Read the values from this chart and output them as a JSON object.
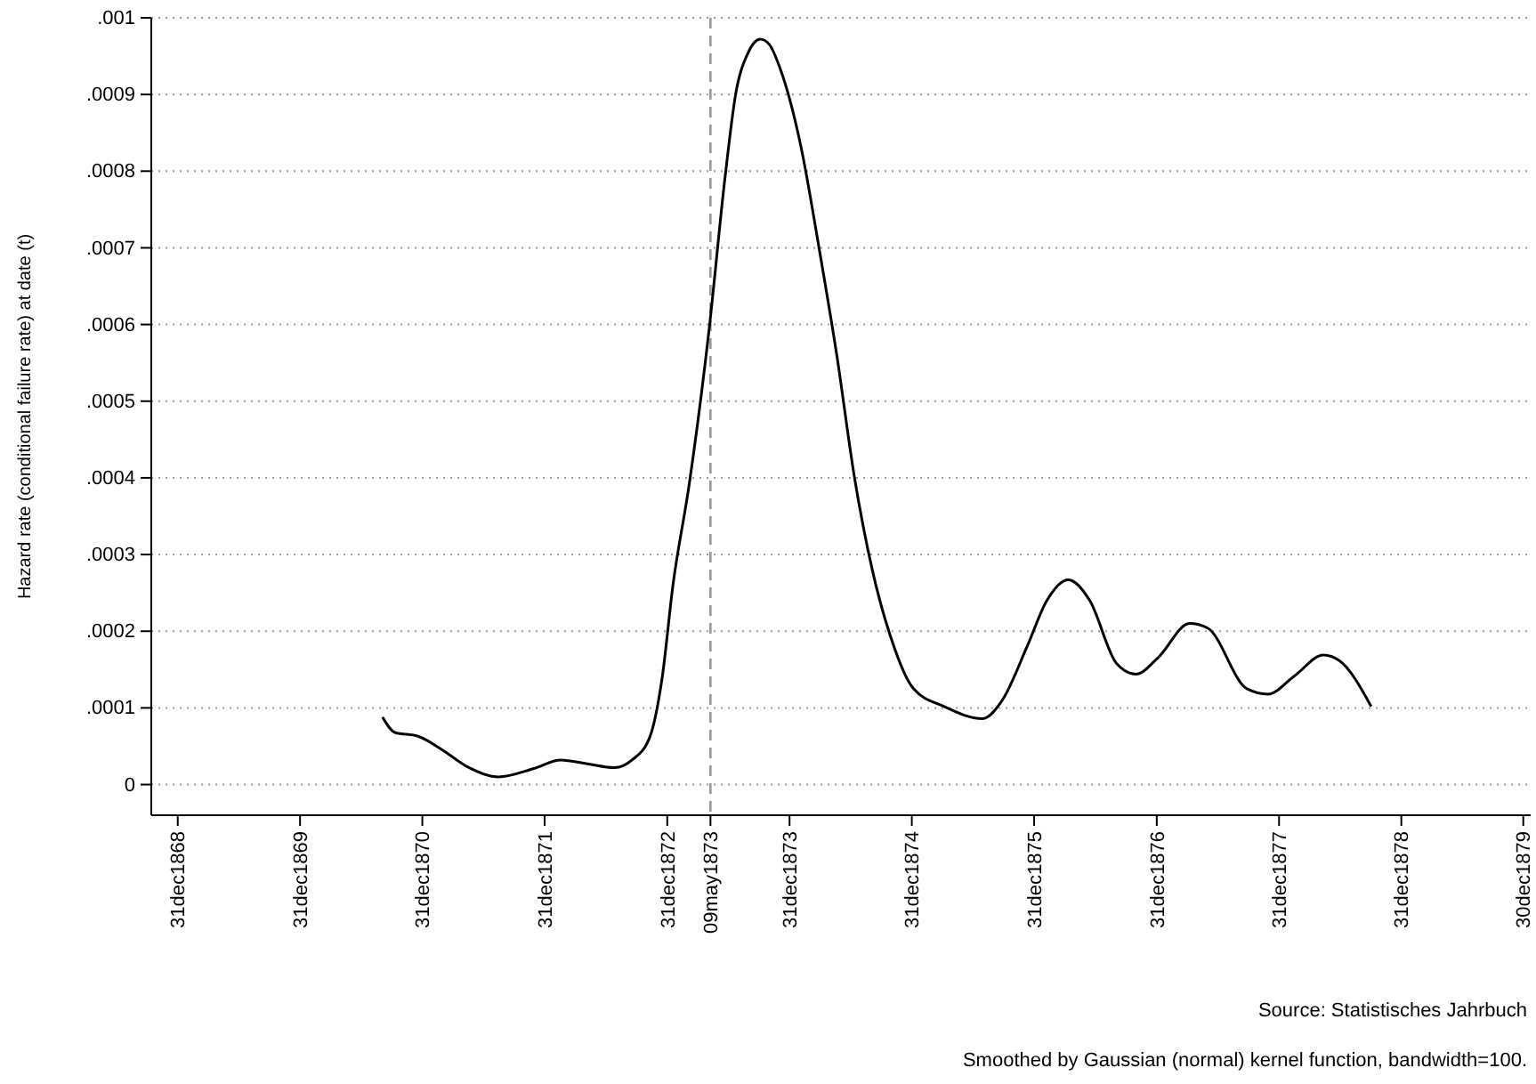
{
  "chart_data": {
    "type": "line",
    "ylabel": "Hazard rate (conditional failure rate) at date (t)",
    "annotations": [
      "Source: Statistisches Jahrbuch",
      "Smoothed by Gaussian (normal) kernel function, bandwidth=100."
    ],
    "x": [
      "1870-09-03",
      "1870-10-10",
      "1870-12-18",
      "1871-02-26",
      "1871-05-11",
      "1871-08-15",
      "1871-11-29",
      "1872-02-17",
      "1872-05-07",
      "1872-07-26",
      "1872-09-17",
      "1872-11-09",
      "1872-12-16",
      "1873-01-17",
      "1873-03-06",
      "1873-05-04",
      "1873-06-21",
      "1873-07-23",
      "1873-08-29",
      "1873-10-05",
      "1873-11-01",
      "1873-12-02",
      "1874-02-04",
      "1874-03-29",
      "1874-05-21",
      "1874-07-13",
      "1874-09-04",
      "1874-10-27",
      "1875-01-05",
      "1875-04-05",
      "1875-07-30",
      "1875-09-27",
      "1875-12-10",
      "1876-02-07",
      "1876-04-11",
      "1876-06-14",
      "1876-09-02",
      "1876-10-30",
      "1877-01-03",
      "1877-04-08",
      "1877-06-01",
      "1877-09-26",
      "1877-11-28",
      "1878-02-16",
      "1878-05-12",
      "1878-06-28",
      "1878-10-02"
    ],
    "series": [
      {
        "color": "#000000",
        "values": [
          8.8e-05,
          6.8e-05,
          6.3e-05,
          4.6e-05,
          2.4e-05,
          1e-05,
          2.1e-05,
          3.2e-05,
          2.7e-05,
          2.2e-05,
          3.2e-05,
          6.2e-05,
          0.00014,
          0.00026,
          0.00039,
          0.00059,
          0.00079,
          0.0009,
          0.000954,
          0.000972,
          0.000965,
          0.000935,
          0.00083,
          0.0007,
          0.00056,
          0.0004,
          0.00028,
          0.000195,
          0.000125,
          0.000102,
          8.6e-05,
          0.00011,
          0.00018,
          0.00024,
          0.000267,
          0.00024,
          0.000158,
          0.000144,
          0.000165,
          0.00021,
          0.000204,
          0.000125,
          0.000118,
          0.000142,
          0.000169,
          0.000162,
          0.000102
        ]
      }
    ],
    "xlim": [
      "1868-10-13",
      "1880-01-21"
    ],
    "xticks": [
      {
        "value": "1868-12-31",
        "label": "31dec1868"
      },
      {
        "value": "1869-12-31",
        "label": "31dec1869"
      },
      {
        "value": "1870-12-31",
        "label": "31dec1870"
      },
      {
        "value": "1871-12-31",
        "label": "31dec1871"
      },
      {
        "value": "1872-12-31",
        "label": "31dec1872"
      },
      {
        "value": "1873-05-09",
        "label": "09may1873"
      },
      {
        "value": "1873-12-31",
        "label": "31dec1873"
      },
      {
        "value": "1874-12-31",
        "label": "31dec1874"
      },
      {
        "value": "1875-12-31",
        "label": "31dec1875"
      },
      {
        "value": "1876-12-31",
        "label": "31dec1876"
      },
      {
        "value": "1877-12-31",
        "label": "31dec1877"
      },
      {
        "value": "1878-12-31",
        "label": "31dec1878"
      },
      {
        "value": "1879-12-30",
        "label": "30dec1879"
      }
    ],
    "ylim": [
      -4e-05,
      0.001
    ],
    "yticks": [
      {
        "value": 0,
        "label": "0"
      },
      {
        "value": 0.0001,
        "label": ".0001"
      },
      {
        "value": 0.0002,
        "label": ".0002"
      },
      {
        "value": 0.0003,
        "label": ".0003"
      },
      {
        "value": 0.0004,
        "label": ".0004"
      },
      {
        "value": 0.0005,
        "label": ".0005"
      },
      {
        "value": 0.0006,
        "label": ".0006"
      },
      {
        "value": 0.0007,
        "label": ".0007"
      },
      {
        "value": 0.0008,
        "label": ".0008"
      },
      {
        "value": 0.0009,
        "label": ".0009"
      },
      {
        "value": 0.001,
        "label": ".001"
      }
    ],
    "grid": "y",
    "marker": "none",
    "line_style": "solid",
    "ref_lines": [
      {
        "axis": "x",
        "value": "1873-05-09",
        "color": "#999999",
        "line_style": "dashed"
      }
    ]
  }
}
